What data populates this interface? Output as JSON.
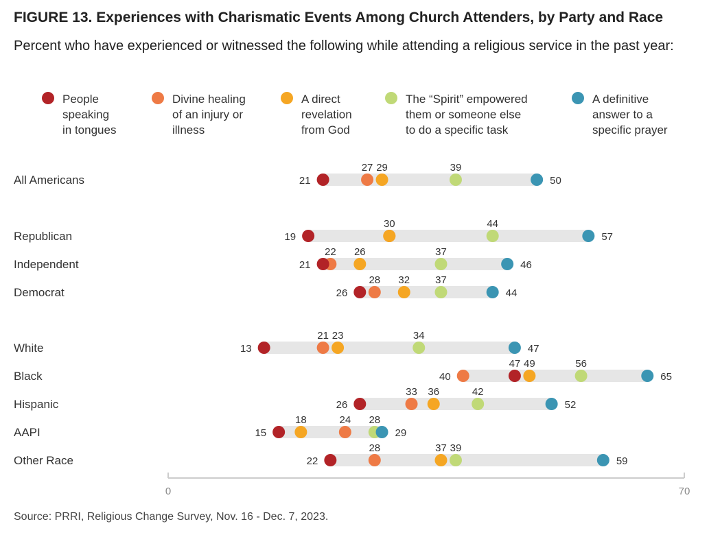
{
  "title": "FIGURE 13. Experiences with Charismatic Events Among Church Attenders, by Party and Race",
  "subtitle": "Percent who have experienced or witnessed the following while attending a religious service in the past year:",
  "source": "Source: PRRI, Religious Change Survey, Nov. 16 - Dec. 7, 2023.",
  "colors": {
    "tongues": "#b22327",
    "healing": "#ee7a45",
    "revelation": "#f5a623",
    "spirit": "#c0d977",
    "prayer": "#3b95b3",
    "bar": "#e6e6e6",
    "axis": "#cccccc"
  },
  "chart_data": {
    "type": "dot-range",
    "title": "FIGURE 13. Experiences with Charismatic Events Among Church Attenders, by Party and Race",
    "subtitle": "Percent who have experienced or witnessed the following while attending a religious service in the past year:",
    "xlim": [
      0,
      70
    ],
    "x_ticks": [
      "0",
      "70"
    ],
    "legend_position": "top",
    "series": [
      {
        "key": "tongues",
        "name": [
          "People",
          "speaking",
          "in tongues"
        ]
      },
      {
        "key": "healing",
        "name": [
          "Divine healing",
          "of an injury or",
          "illness"
        ]
      },
      {
        "key": "revelation",
        "name": [
          "A direct",
          "revelation",
          "from God"
        ]
      },
      {
        "key": "spirit",
        "name": [
          "The “Spirit”  empowered",
          "them or someone else",
          "to do a specific task"
        ]
      },
      {
        "key": "prayer",
        "name": [
          "A definitive",
          "answer to a",
          "specific prayer"
        ]
      }
    ],
    "groups": [
      {
        "label": "All Americans",
        "values": {
          "tongues": 21,
          "healing": 27,
          "revelation": 29,
          "spirit": 39,
          "prayer": 50
        }
      },
      {
        "label": "Republican",
        "values": {
          "tongues": 19,
          "healing": 30,
          "revelation": 30,
          "spirit": 44,
          "prayer": 57
        }
      },
      {
        "label": "Independent",
        "values": {
          "tongues": 21,
          "healing": 22,
          "revelation": 26,
          "spirit": 37,
          "prayer": 46
        }
      },
      {
        "label": "Democrat",
        "values": {
          "tongues": 26,
          "healing": 28,
          "revelation": 32,
          "spirit": 37,
          "prayer": 44
        }
      },
      {
        "label": "White",
        "values": {
          "tongues": 13,
          "healing": 21,
          "revelation": 23,
          "spirit": 34,
          "prayer": 47
        }
      },
      {
        "label": "Black",
        "values": {
          "tongues": 47,
          "healing": 40,
          "revelation": 49,
          "spirit": 56,
          "prayer": 65
        }
      },
      {
        "label": "Hispanic",
        "values": {
          "tongues": 26,
          "healing": 33,
          "revelation": 36,
          "spirit": 42,
          "prayer": 52
        }
      },
      {
        "label": "AAPI",
        "values": {
          "tongues": 15,
          "healing": 24,
          "revelation": 18,
          "spirit": 28,
          "prayer": 29
        }
      },
      {
        "label": "Other Race",
        "values": {
          "tongues": 22,
          "healing": 28,
          "revelation": 37,
          "spirit": 39,
          "prayer": 59
        }
      }
    ]
  }
}
